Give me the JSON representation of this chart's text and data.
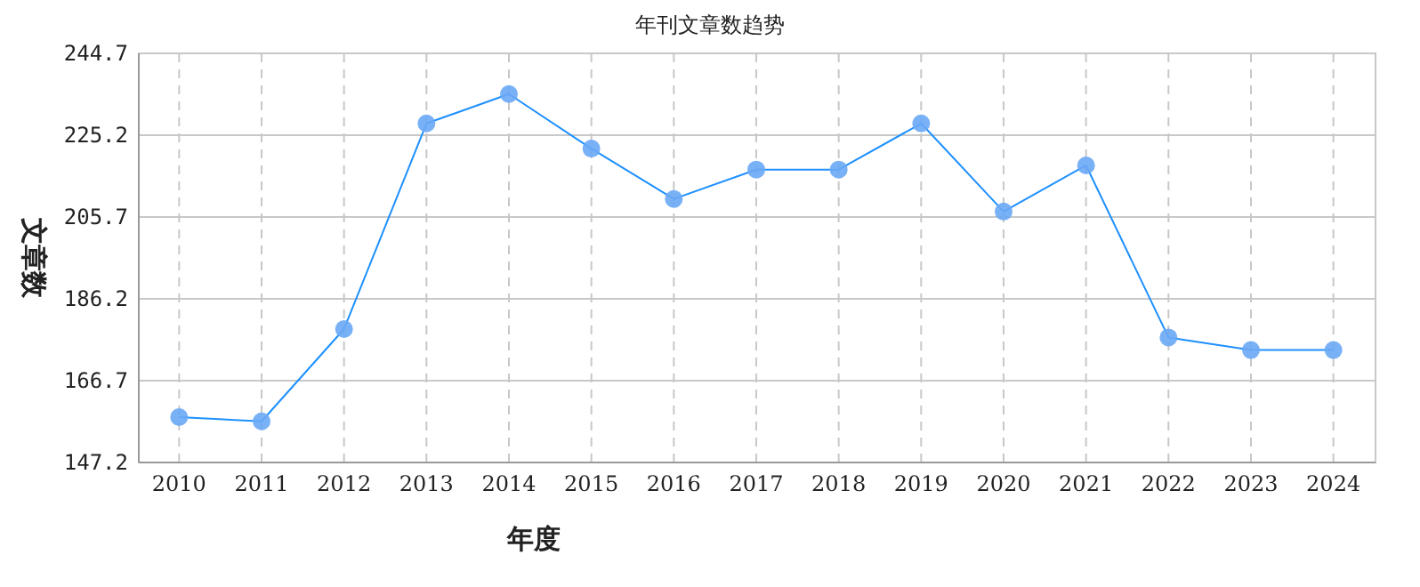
{
  "chart_data": {
    "type": "line",
    "title": "年刊文章数趋势",
    "xlabel": "年度",
    "ylabel": "文章数",
    "categories": [
      "2010",
      "2011",
      "2012",
      "2013",
      "2014",
      "2015",
      "2016",
      "2017",
      "2018",
      "2019",
      "2020",
      "2021",
      "2022",
      "2023",
      "2024"
    ],
    "series": [
      {
        "color": "#1e90ff",
        "values": [
          158,
          157,
          179,
          228,
          235,
          222,
          210,
          217,
          217,
          228,
          207,
          218,
          177,
          174,
          174
        ]
      }
    ],
    "ylim": [
      147.2,
      244.7
    ],
    "yticks": [
      147.2,
      166.7,
      186.2,
      205.7,
      225.2,
      244.7
    ],
    "grid": true,
    "marker": "circle"
  }
}
